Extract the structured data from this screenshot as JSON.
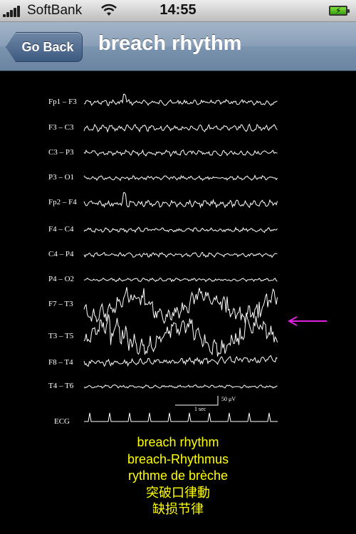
{
  "status_bar": {
    "carrier": "SoftBank",
    "time": "14:55",
    "signal_bars": 5,
    "wifi_icon": "wifi-icon",
    "battery_icon": "battery-charging-icon"
  },
  "nav": {
    "back_label": "Go Back",
    "title": "breach rhythm"
  },
  "eeg": {
    "leads": [
      "Fp1 – F3",
      "F3 – C3",
      "C3 – P3",
      "P3 – O1",
      "Fp2 – F4",
      "F4 – C4",
      "C4 – P4",
      "P4 – O2",
      "F7 – T3",
      "T3 – T5",
      "F8 – T4",
      "T4 – T6"
    ],
    "ecg_label": "ECG",
    "scale_time": "1 sec",
    "scale_amplitude": "50 μV",
    "highlight_arrow_color": "#e020e0"
  },
  "terms": [
    "breach rhythm",
    "breach-Rhythmus",
    "rythme de brèche",
    "突破口律動",
    "缺损节律"
  ],
  "colors": {
    "term_text": "#ffff00",
    "nav_bar": "#7f98b3",
    "background": "#000000"
  }
}
